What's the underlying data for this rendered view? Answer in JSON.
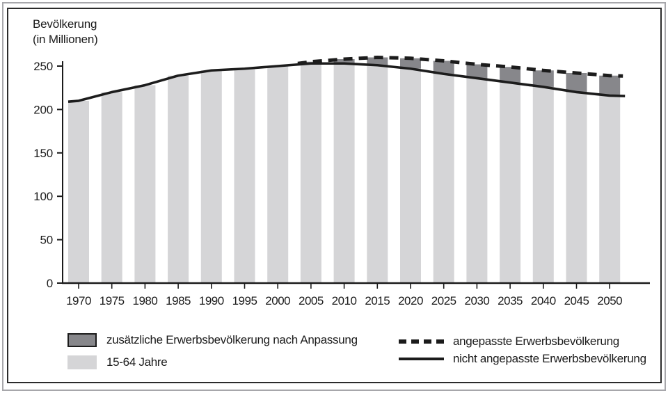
{
  "header": {
    "line1": "Bevölkerung",
    "line2": "(in Millionen)"
  },
  "colors": {
    "bar_light": "#d5d5d7",
    "bar_dark": "#87878b",
    "line": "#1c1c1c",
    "axis": "#1b1b1b",
    "frame_inner": "#2b2b2b",
    "frame_outer": "#a7a7ab"
  },
  "chart_data": {
    "type": "bar",
    "title": "Bevölkerung (in Millionen)",
    "ylabel": "Bevölkerung (in Millionen)",
    "xlabel": "",
    "ylim": [
      0,
      270
    ],
    "y_ticks": [
      0,
      50,
      100,
      150,
      200,
      250
    ],
    "grid": false,
    "legend_position": "bottom",
    "categories": [
      "1970",
      "1975",
      "1980",
      "1985",
      "1990",
      "1995",
      "2000",
      "2005",
      "2010",
      "2015",
      "2020",
      "2025",
      "2030",
      "2035",
      "2040",
      "2045",
      "2050"
    ],
    "series": [
      {
        "name": "15-64 Jahre",
        "type": "bar",
        "values": [
          210,
          220,
          228,
          239,
          245,
          247,
          250,
          253,
          253,
          251,
          247,
          241,
          236,
          231,
          226,
          220,
          216
        ]
      },
      {
        "name": "zusätzliche Erwerbsbevölkerung nach Anpassung",
        "type": "bar-cap-stacked-on-15-64",
        "values": [
          0,
          0,
          0,
          0,
          0,
          0,
          0,
          2,
          5,
          9,
          12,
          15,
          16,
          18,
          19,
          22,
          23
        ]
      },
      {
        "name": "nicht angepasste Erwerbsbevölkerung",
        "type": "line-solid",
        "values": [
          210,
          220,
          228,
          239,
          245,
          247,
          250,
          253,
          253,
          251,
          247,
          241,
          236,
          231,
          226,
          220,
          216
        ]
      },
      {
        "name": "angepasste Erwerbsbevölkerung",
        "type": "line-dashed",
        "values": [
          null,
          null,
          null,
          null,
          null,
          null,
          null,
          255,
          258,
          260,
          259,
          256,
          252,
          249,
          245,
          242,
          239
        ]
      }
    ]
  },
  "legend": {
    "additional_label": "zusätzliche Erwerbsbevölkerung nach Anpassung",
    "bar_label": "15-64 Jahre",
    "dashed_label": "angepasste Erwerbsbevölkerung",
    "solid_label": "nicht angepasste Erwerbsbevölkerung"
  }
}
